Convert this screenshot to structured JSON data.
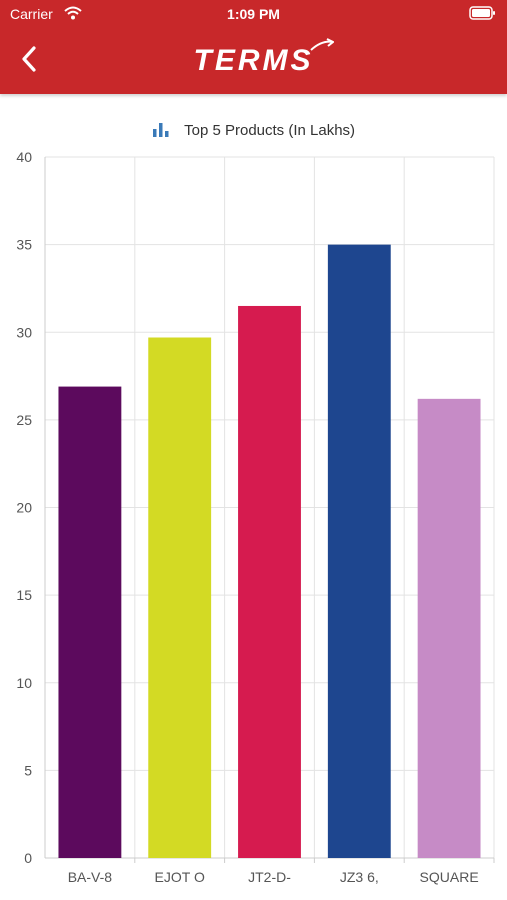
{
  "status_bar": {
    "carrier": "Carrier",
    "time": "1:09 PM"
  },
  "header": {
    "logo_text": "TERMS",
    "back_icon": "chevron-left-icon",
    "background_color": "#c8282a"
  },
  "chart_data": {
    "type": "bar",
    "title": "Top 5 Products (In Lakhs)",
    "title_icon": "bar-chart-icon",
    "categories": [
      "BA-V-8",
      "EJOT O",
      "JT2-D-",
      "JZ3 6,",
      "SQUARE"
    ],
    "values": [
      26.9,
      29.7,
      31.5,
      35.0,
      26.2
    ],
    "colors": [
      "#5c0a5d",
      "#d3da24",
      "#d61b4f",
      "#1e468f",
      "#c68bc6"
    ],
    "ylim": [
      0,
      40
    ],
    "yticks": [
      0,
      5,
      10,
      15,
      20,
      25,
      30,
      35,
      40
    ],
    "xlabel": "",
    "ylabel": "",
    "grid": true,
    "legend": "none"
  }
}
